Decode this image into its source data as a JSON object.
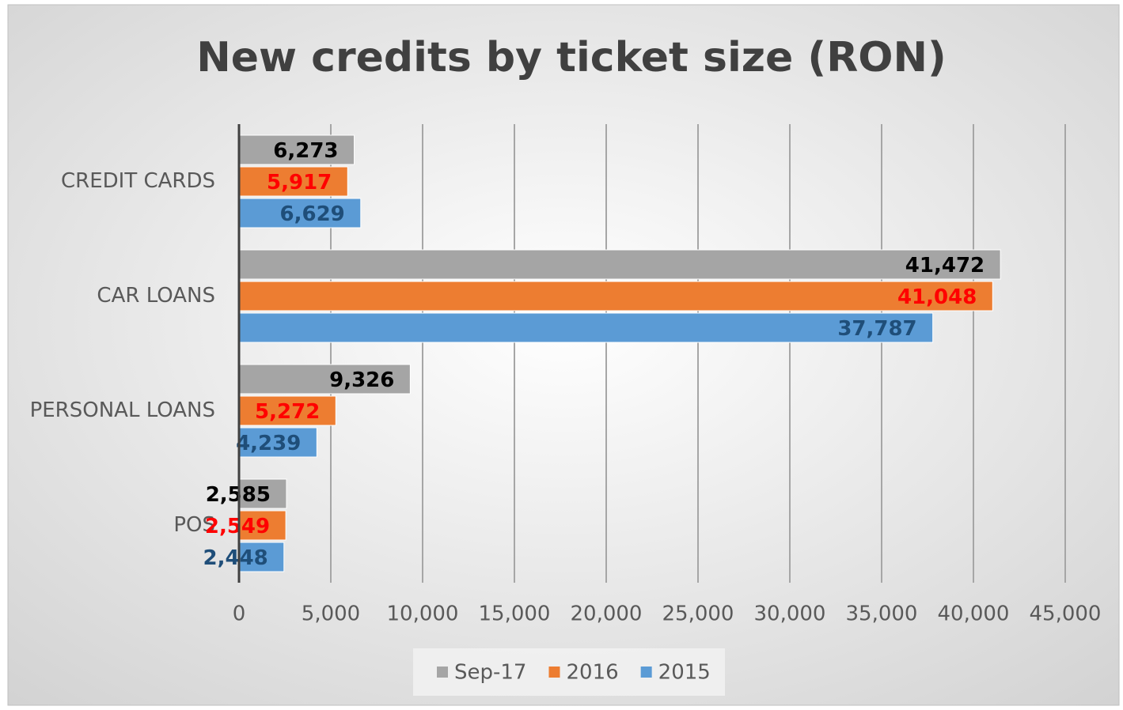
{
  "chart_data": {
    "type": "hbar",
    "title": "New credits by ticket size (RON)",
    "categories": [
      "CREDIT CARDS",
      "CAR LOANS",
      "PERSONAL LOANS",
      "POS"
    ],
    "series": [
      {
        "name": "Sep-17",
        "color": "#a5a5a5",
        "label_color": "#000000",
        "values": [
          6273,
          41472,
          9326,
          2585
        ],
        "value_labels": [
          "6,273",
          "41,472",
          "9,326",
          "2,585"
        ]
      },
      {
        "name": "2016",
        "color": "#ed7d31",
        "label_color": "#ff0000",
        "values": [
          5917,
          41048,
          5272,
          2549
        ],
        "value_labels": [
          "5,917",
          "41,048",
          "5,272",
          "2,549"
        ]
      },
      {
        "name": "2015",
        "color": "#5b9bd5",
        "label_color": "#1f4e79",
        "values": [
          6629,
          37787,
          4239,
          2448
        ],
        "value_labels": [
          "6,629",
          "37,787",
          "4,239",
          "2,448"
        ]
      }
    ],
    "xlim": [
      0,
      45000
    ],
    "xticks": [
      0,
      {
        "value": 5000,
        "label": "5,000"
      },
      {
        "value": 10000,
        "label": "10,000"
      },
      {
        "value": 15000,
        "label": "15,000"
      },
      {
        "value": 20000,
        "label": "20,000"
      },
      {
        "value": 25000,
        "label": "25,000"
      },
      {
        "value": 30000,
        "label": "30,000"
      },
      {
        "value": 35000,
        "label": "35,000"
      },
      {
        "value": 40000,
        "label": "40,000"
      },
      {
        "value": 45000,
        "label": "45,000"
      }
    ],
    "grid": true,
    "legend": "bottom"
  }
}
